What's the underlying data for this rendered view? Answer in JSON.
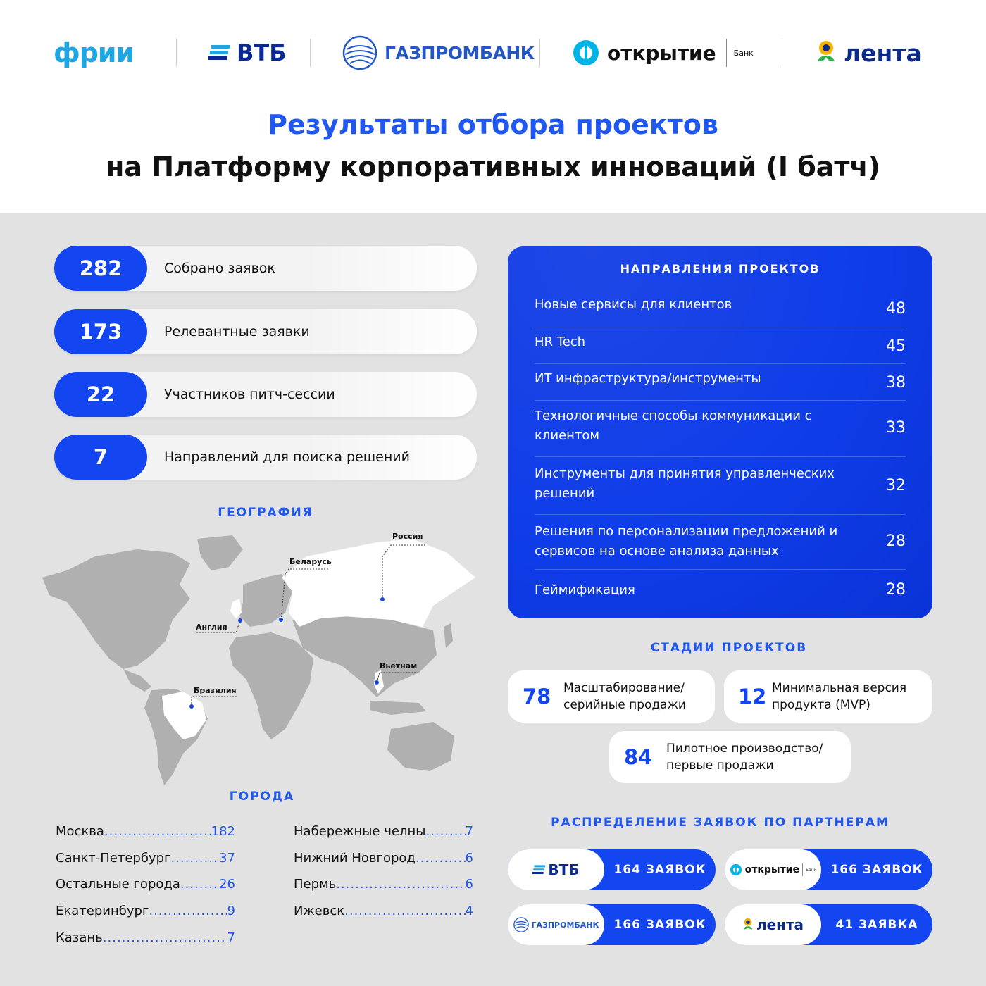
{
  "header": {
    "logos": {
      "fri": "фрии",
      "vtb": "ВТБ",
      "gazprombank": "ГАЗПРОМБАНК",
      "otkrytie": "открытие",
      "otkrytie_sub": "Банк",
      "lenta": "лента"
    },
    "title_line1": "Результаты отбора проектов",
    "title_line2": "на Платформу корпоративных инноваций (I батч)"
  },
  "colors": {
    "accent": "#1346f0",
    "panel": "#e2e2e2",
    "map_land": "#b0b0b0",
    "map_highlight": "#ffffff"
  },
  "stats": [
    {
      "value": "282",
      "label": "Собрано заявок"
    },
    {
      "value": "173",
      "label": "Релевантные заявки"
    },
    {
      "value": "22",
      "label": "Участников питч-сессии"
    },
    {
      "value": "7",
      "label": "Направлений для поиска решений"
    }
  ],
  "geography": {
    "heading": "ГЕОГРАФИЯ",
    "labels": {
      "russia": "Россия",
      "belarus": "Беларусь",
      "england": "Англия",
      "vietnam": "Вьетнам",
      "brazil": "Бразилия"
    }
  },
  "cities": {
    "heading": "ГОРОДА",
    "left": [
      {
        "name": "Москва",
        "value": "182"
      },
      {
        "name": "Санкт-Петербург",
        "value": "37"
      },
      {
        "name": "Остальные города ",
        "value": "26"
      },
      {
        "name": "Екатеринбург",
        "value": "9"
      },
      {
        "name": "Казань",
        "value": "7"
      }
    ],
    "right": [
      {
        "name": "Набережные челны",
        "value": "7"
      },
      {
        "name": "Нижний Новгород",
        "value": "6"
      },
      {
        "name": "Пермь",
        "value": "6"
      },
      {
        "name": "Ижевск",
        "value": "4"
      }
    ]
  },
  "directions": {
    "heading": "НАПРАВЛЕНИЯ ПРОЕКТОВ",
    "items": [
      {
        "name": "Новые сервисы для клиентов",
        "value": "48"
      },
      {
        "name": "HR Tech",
        "value": "45"
      },
      {
        "name": "ИТ инфраструктура/инструменты",
        "value": "38"
      },
      {
        "name": "Технологичные способы коммуникации с клиентом",
        "value": "33"
      },
      {
        "name": "Инструменты для принятия управленческих решений",
        "value": "32"
      },
      {
        "name": "Решения по персонализации предложений и сервисов на основе анализа данных",
        "value": "28"
      },
      {
        "name": "Геймификация",
        "value": "28"
      }
    ]
  },
  "stages": {
    "heading": "СТАДИИ ПРОЕКТОВ",
    "items": [
      {
        "value": "78",
        "line1": "Масштабирование/",
        "line2": "серийные продажи"
      },
      {
        "value": "12",
        "line1": "Минимальная версия",
        "line2": "продукта (MVP)"
      },
      {
        "value": "84",
        "line1": "Пилотное производство/",
        "line2": "первые продажи"
      }
    ]
  },
  "partners": {
    "heading": "РАСПРЕДЕЛЕНИЕ ЗАЯВОК ПО ПАРТНЕРАМ",
    "items": [
      {
        "logo": "ВТБ",
        "value": "164 ЗАЯВОК"
      },
      {
        "logo": "открытие",
        "logo_sub": "Банк",
        "value": "166 ЗАЯВОК"
      },
      {
        "logo": "ГАЗПРОМБАНК",
        "value": "166 ЗАЯВОК"
      },
      {
        "logo": "лента",
        "value": "41 ЗАЯВКА"
      }
    ]
  }
}
